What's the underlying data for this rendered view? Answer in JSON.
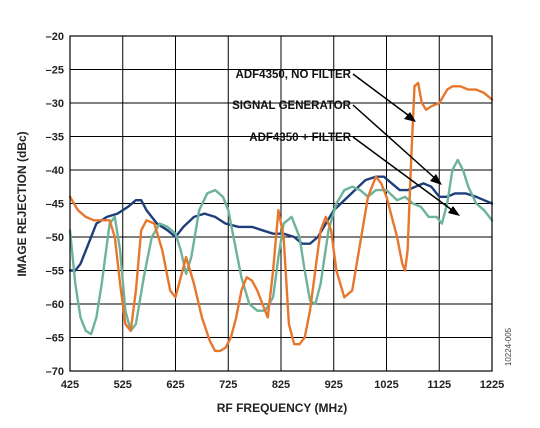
{
  "chart_data": {
    "type": "line",
    "xlabel": "RF FREQUENCY (MHz)",
    "ylabel": "IMAGE REJECTION (dBc)",
    "xlim": [
      425,
      1225
    ],
    "ylim": [
      -70,
      -20
    ],
    "xticks": [
      425,
      525,
      625,
      725,
      825,
      925,
      1025,
      1125,
      1225
    ],
    "yticks": [
      -20,
      -25,
      -30,
      -35,
      -40,
      -45,
      -50,
      -55,
      -60,
      -65,
      -70
    ],
    "grid": true,
    "figure_id": "10224-005",
    "series": [
      {
        "name": "ADF4350, NO FILTER",
        "color": "#e8772e",
        "x": [
          425,
          440,
          455,
          470,
          485,
          500,
          510,
          520,
          530,
          540,
          550,
          560,
          570,
          585,
          600,
          615,
          625,
          635,
          645,
          660,
          675,
          690,
          700,
          710,
          720,
          730,
          740,
          750,
          760,
          770,
          780,
          790,
          800,
          810,
          820,
          830,
          840,
          850,
          860,
          870,
          880,
          890,
          900,
          910,
          920,
          930,
          945,
          960,
          975,
          990,
          1005,
          1015,
          1025,
          1035,
          1045,
          1055,
          1060,
          1065,
          1072,
          1078,
          1085,
          1092,
          1100,
          1110,
          1125,
          1140,
          1150,
          1165,
          1180,
          1195,
          1210,
          1225
        ],
        "y": [
          -44,
          -46,
          -47,
          -47.5,
          -47.5,
          -47.5,
          -50,
          -57,
          -63,
          -64,
          -58,
          -49,
          -47.5,
          -48,
          -52,
          -58,
          -59,
          -56,
          -53,
          -57,
          -62,
          -65.5,
          -67,
          -67,
          -66.5,
          -65,
          -62,
          -58,
          -56,
          -56.5,
          -58,
          -60,
          -62,
          -55,
          -46,
          -50,
          -63,
          -66,
          -66,
          -65,
          -61,
          -55,
          -49,
          -47,
          -49,
          -55,
          -59,
          -58,
          -51,
          -44,
          -41,
          -42,
          -44,
          -47,
          -50,
          -54,
          -55,
          -52,
          -38,
          -27.5,
          -27,
          -30,
          -31,
          -30.5,
          -30,
          -28,
          -27.5,
          -27.5,
          -28,
          -28,
          -28.5,
          -29.5
        ]
      },
      {
        "name": "SIGNAL GENERATOR",
        "color": "#1f3f7a",
        "x": [
          425,
          435,
          445,
          460,
          475,
          495,
          515,
          535,
          550,
          560,
          570,
          590,
          610,
          625,
          640,
          660,
          680,
          700,
          720,
          745,
          770,
          790,
          810,
          830,
          850,
          865,
          880,
          895,
          910,
          925,
          945,
          965,
          985,
          1005,
          1020,
          1035,
          1050,
          1065,
          1080,
          1095,
          1110,
          1125,
          1140,
          1155,
          1175,
          1195,
          1210,
          1225
        ],
        "y": [
          -55,
          -55,
          -54,
          -51,
          -48,
          -47,
          -46.5,
          -45.5,
          -44.5,
          -44.5,
          -46,
          -48,
          -49,
          -50,
          -48.5,
          -47,
          -46.5,
          -47,
          -48,
          -48.5,
          -48.5,
          -49,
          -49.5,
          -49.5,
          -50,
          -51,
          -51,
          -50,
          -48,
          -46,
          -44.5,
          -43,
          -41.5,
          -41,
          -41,
          -42,
          -43,
          -43,
          -42.5,
          -42,
          -42.5,
          -44,
          -44,
          -43.5,
          -43.5,
          -44,
          -44.5,
          -45
        ]
      },
      {
        "name": "ADF4350 + FILTER",
        "color": "#6db39a",
        "x": [
          425,
          435,
          445,
          455,
          465,
          475,
          485,
          500,
          510,
          520,
          530,
          540,
          550,
          565,
          580,
          595,
          610,
          625,
          635,
          645,
          655,
          670,
          685,
          700,
          715,
          725,
          735,
          750,
          765,
          780,
          795,
          810,
          820,
          830,
          845,
          860,
          870,
          880,
          890,
          900,
          915,
          930,
          945,
          960,
          975,
          990,
          1005,
          1025,
          1045,
          1060,
          1075,
          1090,
          1105,
          1120,
          1130,
          1140,
          1150,
          1160,
          1170,
          1180,
          1195,
          1210,
          1225
        ],
        "y": [
          -49,
          -57,
          -62,
          -64,
          -64.5,
          -62,
          -57,
          -48,
          -47,
          -52,
          -61,
          -64,
          -63,
          -56,
          -50,
          -48,
          -48.5,
          -49.5,
          -52,
          -55.5,
          -53,
          -46,
          -43.5,
          -43,
          -44,
          -46,
          -50,
          -56,
          -60,
          -61,
          -61,
          -59,
          -53,
          -48,
          -47,
          -50,
          -55,
          -59.5,
          -60,
          -57,
          -49,
          -45,
          -43,
          -42.5,
          -43,
          -44,
          -43,
          -43,
          -44.5,
          -44,
          -45,
          -45.5,
          -47,
          -47,
          -48,
          -45,
          -40,
          -38.5,
          -40,
          -42.5,
          -45,
          -46,
          -47.5
        ]
      }
    ]
  }
}
